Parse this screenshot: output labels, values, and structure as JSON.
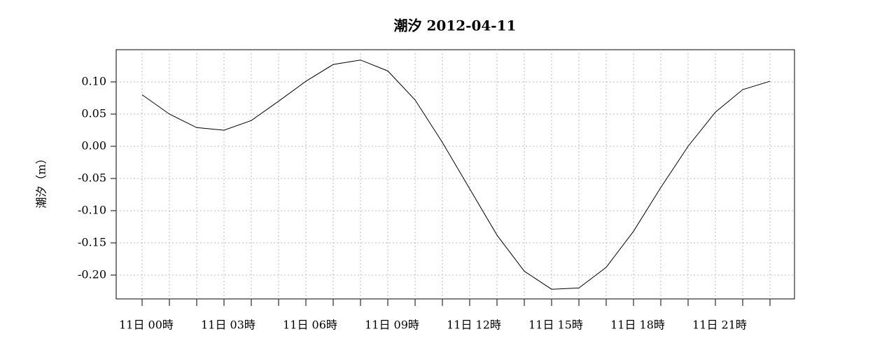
{
  "chart_data": {
    "type": "line",
    "title": "潮汐  2012-04-11",
    "y_label": "潮汐（m）",
    "categories": [
      "11日 00時",
      null,
      null,
      "11日 03時",
      null,
      null,
      "11日 06時",
      null,
      null,
      "11日 09時",
      null,
      null,
      "11日 12時",
      null,
      null,
      "11日 15時",
      null,
      null,
      "11日 18時",
      null,
      null,
      "11日 21時",
      null,
      null
    ],
    "series": [
      {
        "name": "潮汐",
        "color": "#000000",
        "values": [
          0.08,
          0.05,
          0.029,
          0.025,
          0.04,
          0.07,
          0.101,
          0.127,
          0.134,
          0.117,
          0.072,
          0.006,
          -0.066,
          -0.138,
          -0.194,
          -0.222,
          -0.22,
          -0.188,
          -0.132,
          -0.064,
          0.0,
          0.053,
          0.088,
          0.101
        ]
      }
    ],
    "ylim": [
      -0.237,
      0.15
    ],
    "yticks": [
      {
        "value": -0.2,
        "label": "-0.20"
      },
      {
        "value": -0.15,
        "label": "-0.15"
      },
      {
        "value": -0.1,
        "label": "-0.10"
      },
      {
        "value": -0.05,
        "label": "-0.05"
      },
      {
        "value": 0,
        "label": "0.00"
      },
      {
        "value": 0.05,
        "label": "0.05"
      },
      {
        "value": 0.1,
        "label": "0.10"
      }
    ],
    "grid": true
  }
}
